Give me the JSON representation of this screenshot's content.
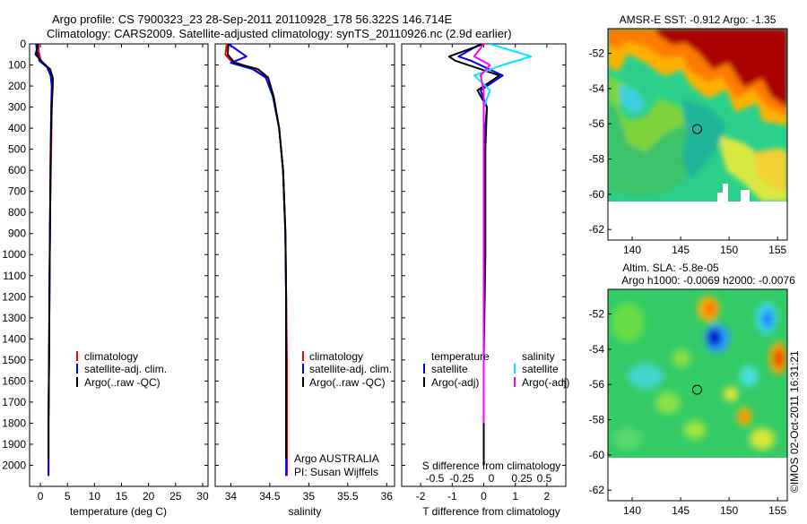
{
  "header": {
    "line1": "Argo profile: CS 7900323_23 28-Sep-2011 20110928_178 56.322S 146.714E",
    "line2": "Climatology: CARS2009. Satellite-adjusted climatology: synTS_20110926.nc (2.9d earlier)"
  },
  "colors": {
    "climatology": "#ff0000",
    "satellite": "#0000ff",
    "argo": "#000000",
    "sat_salinity": "#00e5ff",
    "argo_salinity": "#ff00ff"
  },
  "chart_data": [
    {
      "type": "line",
      "id": "temperature",
      "xlabel": "temperature (deg C)",
      "ylim": [
        2100,
        0
      ],
      "xlim": [
        -2,
        31
      ],
      "xticks": [
        0,
        5,
        10,
        15,
        20,
        25,
        30
      ],
      "yticks": [
        0,
        100,
        200,
        300,
        400,
        500,
        600,
        700,
        800,
        900,
        1000,
        1100,
        1200,
        1300,
        1400,
        1500,
        1600,
        1700,
        1800,
        1900,
        2000
      ],
      "legend": [
        "climatology",
        "satellite-adj. clim.",
        "Argo(..raw -QC)"
      ],
      "series": [
        {
          "name": "climatology",
          "color": "#ff0000",
          "x": [
            -0.4,
            -0.3,
            0.1,
            1.3,
            2.0,
            2.2,
            2.1,
            2.0,
            1.8,
            1.7,
            1.6,
            1.5,
            1.5
          ],
          "y": [
            0,
            40,
            80,
            110,
            150,
            200,
            300,
            500,
            800,
            1100,
            1500,
            1800,
            2050
          ]
        },
        {
          "name": "satellite-adj. clim.",
          "color": "#0000ff",
          "x": [
            -0.8,
            -0.6,
            -0.2,
            1.2,
            1.9,
            2.1,
            2.0,
            1.9,
            1.8,
            1.7,
            1.6,
            1.5,
            1.5
          ],
          "y": [
            0,
            40,
            80,
            110,
            150,
            200,
            300,
            500,
            800,
            1100,
            1500,
            1800,
            2050
          ]
        },
        {
          "name": "Argo(..raw -QC)",
          "color": "#000000",
          "x": [
            -0.4,
            -0.9,
            0.5,
            1.8,
            2.3,
            2.3,
            2.1,
            1.9,
            1.8,
            1.7,
            1.6,
            1.5,
            1.5
          ],
          "y": [
            0,
            50,
            90,
            120,
            160,
            200,
            300,
            500,
            800,
            1100,
            1500,
            1800,
            1970
          ]
        }
      ]
    },
    {
      "type": "line",
      "id": "salinity",
      "xlabel": "salinity",
      "ylim": [
        2100,
        0
      ],
      "xlim": [
        33.8,
        36.1
      ],
      "xticks": [
        34,
        34.5,
        35,
        35.5,
        36
      ],
      "legend": [
        "climatology",
        "satellite-adj. clim.",
        "Argo(..raw -QC)"
      ],
      "annotation": [
        "Argo AUSTRALIA",
        "PI: Susan Wijffels"
      ],
      "series": [
        {
          "name": "climatology",
          "color": "#ff0000",
          "x": [
            33.95,
            33.93,
            34.0,
            34.3,
            34.45,
            34.55,
            34.62,
            34.67,
            34.7,
            34.71,
            34.72,
            34.72,
            34.72
          ],
          "y": [
            0,
            50,
            80,
            120,
            160,
            250,
            400,
            600,
            900,
            1200,
            1500,
            1800,
            2050
          ]
        },
        {
          "name": "satellite-adj. clim.",
          "color": "#0000ff",
          "x": [
            33.97,
            34.2,
            34.0,
            34.28,
            34.45,
            34.54,
            34.62,
            34.67,
            34.7,
            34.71,
            34.71,
            34.71,
            34.71
          ],
          "y": [
            0,
            60,
            90,
            120,
            160,
            250,
            400,
            600,
            900,
            1200,
            1500,
            1800,
            2050
          ]
        },
        {
          "name": "Argo(..raw -QC)",
          "color": "#000000",
          "x": [
            33.97,
            33.96,
            34.05,
            34.35,
            34.48,
            34.55,
            34.62,
            34.67,
            34.7,
            34.71,
            34.71,
            34.71,
            34.71
          ],
          "y": [
            0,
            50,
            90,
            120,
            160,
            250,
            400,
            600,
            900,
            1200,
            1500,
            1800,
            1970
          ]
        }
      ]
    },
    {
      "type": "line",
      "id": "difference",
      "xlabel": "T difference from climatology",
      "xlabel_top": "S difference from climatology",
      "ylim": [
        2100,
        0
      ],
      "xlim": [
        -2.6,
        2.6
      ],
      "xticks": [
        -2,
        -1,
        0,
        1,
        2
      ],
      "s_xtick_labels": [
        "-0.5",
        "-0.25",
        "0",
        "0.25",
        "0.5"
      ],
      "legend_temperature": [
        "temperature",
        "satellite",
        "Argo(-adj)"
      ],
      "legend_salinity": [
        "salinity",
        "satellite",
        "Argo(-adj)"
      ],
      "series": [
        {
          "name": "satellite",
          "color": "#0000ff",
          "x": [
            -0.1,
            -0.8,
            -0.4,
            0.6,
            -0.1,
            0.1,
            0,
            0,
            0,
            0
          ],
          "y": [
            0,
            60,
            80,
            150,
            220,
            300,
            500,
            1000,
            1500,
            2000
          ]
        },
        {
          "name": "Argo(-adj)",
          "color": "#000000",
          "x": [
            0,
            -1.1,
            -0.9,
            0.5,
            -0.2,
            0.1,
            0.05,
            0.05,
            0,
            0
          ],
          "y": [
            0,
            60,
            80,
            150,
            220,
            300,
            500,
            1000,
            1500,
            2000
          ]
        },
        {
          "name": "satellite",
          "color": "#00e5ff",
          "x": [
            0.2,
            1.5,
            0.6,
            -0.3,
            0.2,
            0,
            0,
            0,
            0,
            0
          ],
          "y": [
            0,
            60,
            100,
            150,
            220,
            300,
            500,
            1000,
            1500,
            1800
          ]
        },
        {
          "name": "Argo(-adj)",
          "color": "#ff00ff",
          "x": [
            0,
            -0.3,
            0.2,
            -0.1,
            0,
            0,
            0,
            0,
            0,
            0
          ],
          "y": [
            0,
            60,
            100,
            150,
            220,
            300,
            500,
            1000,
            1500,
            1800
          ]
        }
      ]
    },
    {
      "type": "heatmap",
      "id": "sst-map",
      "title": "AMSR-E SST: -0.912 Argo: -1.35",
      "xlim": [
        137.5,
        156
      ],
      "ylim": [
        -62.6,
        -50.6
      ],
      "xticks": [
        140,
        145,
        150,
        155
      ],
      "yticks": [
        -52,
        -54,
        -56,
        -58,
        -60,
        -62
      ],
      "marker": {
        "lon": 146.7,
        "lat": -56.3
      }
    },
    {
      "type": "heatmap",
      "id": "sla-map",
      "title": "Altim. SLA: -5.8e-05",
      "subtitle": "Argo h1000: -0.0069 h2000: -0.0076",
      "xlim": [
        137.5,
        156
      ],
      "ylim": [
        -62.6,
        -50.6
      ],
      "xticks": [
        140,
        145,
        150,
        155
      ],
      "yticks": [
        -52,
        -54,
        -56,
        -58,
        -60,
        -62
      ],
      "marker": {
        "lon": 146.7,
        "lat": -56.3
      }
    }
  ],
  "credit": "©IMOS 02-Oct-2011 16:31:21"
}
